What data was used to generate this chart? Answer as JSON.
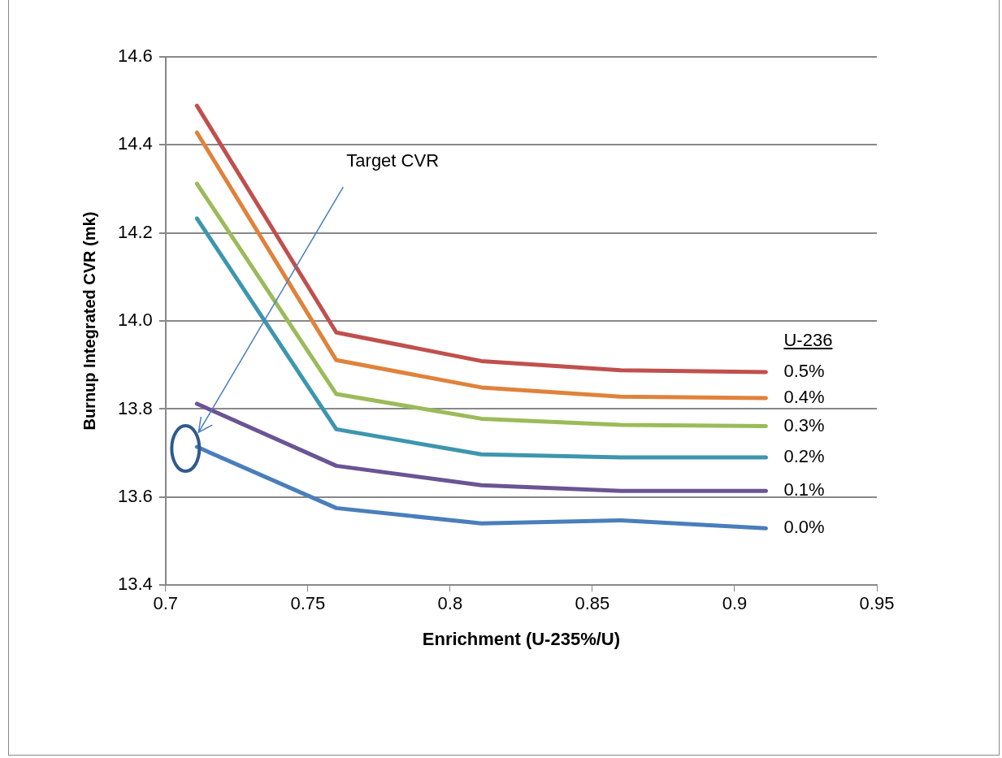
{
  "chart_data": {
    "type": "line",
    "xlabel": "Enrichment (U-235%/U)",
    "ylabel": "Burnup Integrated CVR (mk)",
    "legend_title": "U-236",
    "x": [
      0.711,
      0.76,
      0.811,
      0.86,
      0.911
    ],
    "series": [
      {
        "name": "0.0%",
        "color": "#4a7ebb",
        "values": [
          13.714,
          13.575,
          13.54,
          13.547,
          13.529
        ]
      },
      {
        "name": "0.1%",
        "color": "#6a5494",
        "values": [
          13.812,
          13.671,
          13.627,
          13.614,
          13.614
        ]
      },
      {
        "name": "0.2%",
        "color": "#3d96ae",
        "values": [
          14.233,
          13.754,
          13.697,
          13.69,
          13.69
        ]
      },
      {
        "name": "0.3%",
        "color": "#9bbb59",
        "values": [
          14.312,
          13.834,
          13.778,
          13.764,
          13.761
        ]
      },
      {
        "name": "0.4%",
        "color": "#e0823b",
        "values": [
          14.428,
          13.911,
          13.849,
          13.828,
          13.825
        ]
      },
      {
        "name": "0.5%",
        "color": "#c0504d",
        "values": [
          14.489,
          13.974,
          13.909,
          13.888,
          13.884
        ]
      }
    ],
    "annotations": [
      "Target CVR"
    ],
    "xlim": [
      0.7,
      0.95
    ],
    "xticks": [
      0.7,
      0.75,
      0.8,
      0.85,
      0.9,
      0.95
    ],
    "ylim": [
      13.4,
      14.6
    ],
    "yticks": [
      {
        "value": 13.4,
        "label": "13.4"
      },
      {
        "value": 13.6,
        "label": "13.6"
      },
      {
        "value": 13.8,
        "label": "13.8"
      },
      {
        "value": 14.0,
        "label": "14.0"
      },
      {
        "value": 14.2,
        "label": "14.2"
      },
      {
        "value": 14.4,
        "label": "14.4"
      },
      {
        "value": 14.6,
        "label": "14.6"
      }
    ],
    "grid": "y",
    "legend": false,
    "marker": "none",
    "line_style": "solid"
  }
}
